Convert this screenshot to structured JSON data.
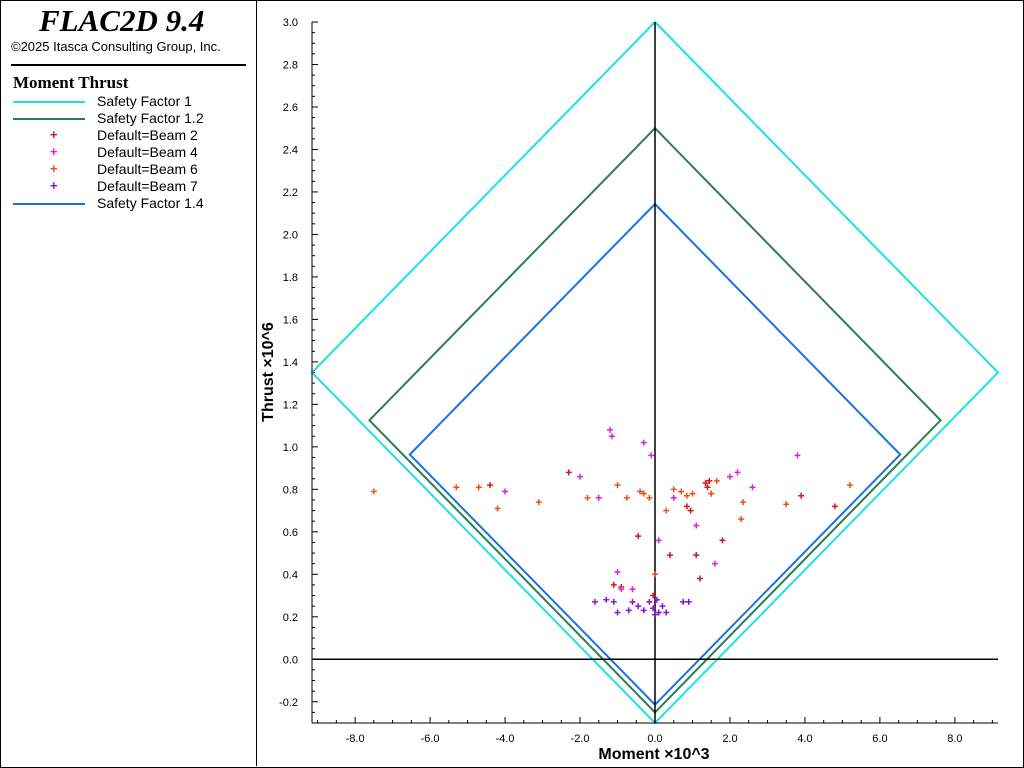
{
  "app": {
    "title": "FLAC2D 9.4",
    "copyright": "©2025 Itasca Consulting Group, Inc."
  },
  "legend": {
    "title": "Moment Thrust",
    "items": [
      {
        "label": "Safety Factor 1",
        "kind": "line",
        "color": "#1ee0e8"
      },
      {
        "label": "Safety Factor 1.2",
        "kind": "line",
        "color": "#2e7d4f"
      },
      {
        "label": "Default=Beam 2",
        "kind": "marker",
        "color": "#d8141c"
      },
      {
        "label": "Default=Beam 4",
        "kind": "marker",
        "color": "#e51fd8"
      },
      {
        "label": "Default=Beam 6",
        "kind": "marker",
        "color": "#f05014"
      },
      {
        "label": "Default=Beam 7",
        "kind": "marker",
        "color": "#8a14d6"
      },
      {
        "label": "Safety Factor 1.4",
        "kind": "line",
        "color": "#1a73e0"
      }
    ]
  },
  "chart_data": {
    "type": "scatter",
    "xlabel": "Moment ×10^3",
    "ylabel": "Thrust ×10^6",
    "xlim": [
      -9.15,
      9.15
    ],
    "ylim": [
      -0.3,
      3.0
    ],
    "xticks": [
      "-8.0",
      "-6.0",
      "-4.0",
      "-2.0",
      "0.0",
      "2.0",
      "4.0",
      "6.0",
      "8.0"
    ],
    "yticks": [
      "-0.2",
      "0.0",
      "0.2",
      "0.4",
      "0.6",
      "0.8",
      "1.0",
      "1.2",
      "1.4",
      "1.6",
      "1.8",
      "2.0",
      "2.2",
      "2.4",
      "2.6",
      "2.8",
      "3.0"
    ],
    "envelopes": [
      {
        "name": "Safety Factor 1",
        "color": "#1ee0e8",
        "points": [
          [
            0,
            3.0
          ],
          [
            9.15,
            1.35
          ],
          [
            0,
            -0.3
          ],
          [
            -9.15,
            1.35
          ],
          [
            0,
            3.0
          ]
        ]
      },
      {
        "name": "Safety Factor 1.2",
        "color": "#2e7d4f",
        "points": [
          [
            0,
            2.5
          ],
          [
            7.62,
            1.125
          ],
          [
            0,
            -0.25
          ],
          [
            -7.62,
            1.125
          ],
          [
            0,
            2.5
          ]
        ]
      },
      {
        "name": "Safety Factor 1.4",
        "color": "#1a73e0",
        "points": [
          [
            0,
            2.143
          ],
          [
            6.54,
            0.964
          ],
          [
            0,
            -0.214
          ],
          [
            -6.54,
            0.964
          ],
          [
            0,
            2.143
          ]
        ]
      }
    ],
    "series": [
      {
        "name": "Default=Beam 2",
        "color": "#d8141c",
        "x": [
          -4.4,
          -2.3,
          -1.1,
          -0.9,
          -0.45,
          -0.05,
          0.4,
          0.85,
          0.95,
          1.1,
          1.2,
          1.35,
          1.4,
          1.45,
          1.5,
          1.8,
          3.9,
          4.8
        ],
        "y": [
          0.82,
          0.88,
          0.35,
          0.34,
          0.58,
          0.3,
          0.49,
          0.72,
          0.7,
          0.49,
          0.38,
          0.83,
          0.81,
          0.84,
          0.78,
          0.56,
          0.77,
          0.72
        ]
      },
      {
        "name": "Default=Beam 4",
        "color": "#e51fd8",
        "x": [
          -4.0,
          -2.0,
          -1.5,
          -1.2,
          -1.15,
          -1.0,
          -0.9,
          -0.6,
          -0.3,
          -0.1,
          0.1,
          0.5,
          1.1,
          1.6,
          2.0,
          2.2,
          2.6,
          3.8
        ],
        "y": [
          0.79,
          0.86,
          0.76,
          1.08,
          1.05,
          0.41,
          0.33,
          0.33,
          1.02,
          0.96,
          0.56,
          0.76,
          0.63,
          0.45,
          0.86,
          0.88,
          0.81,
          0.96
        ]
      },
      {
        "name": "Default=Beam 6",
        "color": "#f05014",
        "x": [
          -7.5,
          -5.3,
          -4.7,
          -4.2,
          -3.1,
          -1.8,
          -1.0,
          -0.75,
          -0.4,
          -0.3,
          -0.15,
          0.0,
          0.3,
          0.5,
          0.7,
          0.85,
          1.0,
          1.5,
          1.65,
          2.3,
          2.35,
          3.5,
          5.2
        ],
        "y": [
          0.79,
          0.81,
          0.81,
          0.71,
          0.74,
          0.76,
          0.82,
          0.76,
          0.79,
          0.78,
          0.76,
          0.4,
          0.7,
          0.8,
          0.79,
          0.77,
          0.78,
          0.78,
          0.84,
          0.66,
          0.74,
          0.73,
          0.82
        ]
      },
      {
        "name": "Default=Beam 7",
        "color": "#8a14d6",
        "x": [
          -1.6,
          -1.3,
          -1.1,
          -1.0,
          -0.7,
          -0.6,
          -0.45,
          -0.3,
          -0.15,
          -0.05,
          0.0,
          0.05,
          0.1,
          0.2,
          0.3,
          0.75,
          0.9
        ],
        "y": [
          0.27,
          0.28,
          0.27,
          0.22,
          0.23,
          0.27,
          0.25,
          0.23,
          0.27,
          0.24,
          0.21,
          0.28,
          0.22,
          0.25,
          0.22,
          0.27,
          0.27
        ]
      }
    ]
  }
}
